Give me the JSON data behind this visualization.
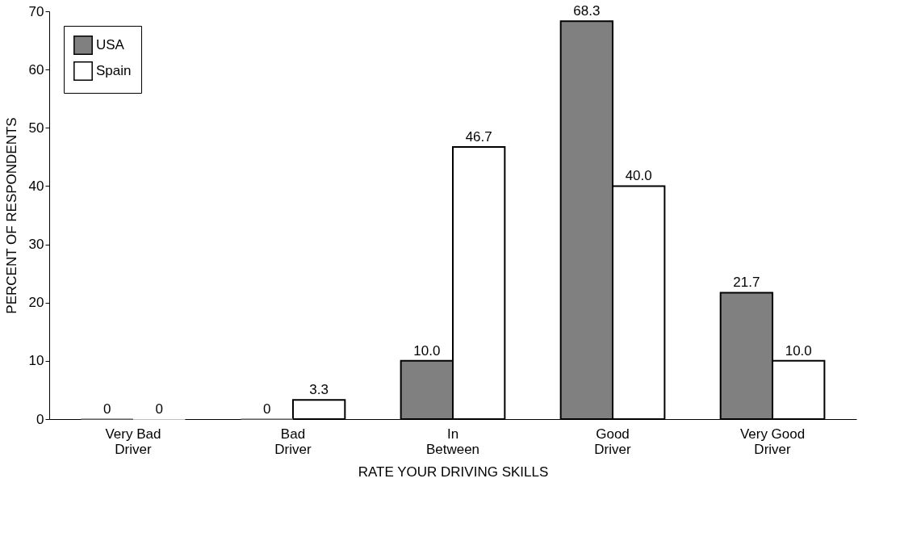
{
  "chart_data": {
    "type": "bar",
    "xlabel": "RATE YOUR DRIVING SKILLS",
    "ylabel": "PERCENT OF RESPONDENTS",
    "categories": [
      "Very Bad\nDriver",
      "Bad\nDriver",
      "In\nBetween",
      "Good\nDriver",
      "Very  Good\nDriver"
    ],
    "series": [
      {
        "name": "USA",
        "color": "#808080",
        "values": [
          0,
          0,
          10.0,
          68.3,
          21.7
        ],
        "value_labels": [
          "0",
          "0",
          "10.0",
          "68.3",
          "21.7"
        ]
      },
      {
        "name": "Spain",
        "color": "#ffffff",
        "values": [
          0,
          3.3,
          46.7,
          40.0,
          10.0
        ],
        "value_labels": [
          "0",
          "3.3",
          "46.7",
          "40.0",
          "10.0"
        ]
      }
    ],
    "ylim": [
      0,
      70
    ],
    "yticks": [
      0,
      10,
      20,
      30,
      40,
      50,
      60,
      70
    ],
    "grid": false,
    "legend": "top left"
  }
}
